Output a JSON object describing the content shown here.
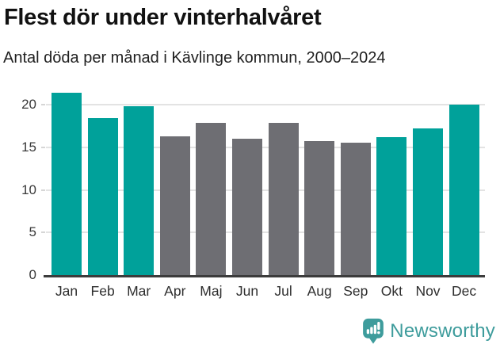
{
  "header": {
    "title": "Flest dör under vinterhalvåret",
    "subtitle": "Antal döda per månad i Kävlinge kommun, 2000–2024"
  },
  "chart_data": {
    "type": "bar",
    "title": "Flest dör under vinterhalvåret",
    "subtitle": "Antal döda per månad i Kävlinge kommun, 2000–2024",
    "categories": [
      "Jan",
      "Feb",
      "Mar",
      "Apr",
      "Maj",
      "Jun",
      "Jul",
      "Aug",
      "Sep",
      "Okt",
      "Nov",
      "Dec"
    ],
    "values": [
      21.4,
      18.4,
      19.8,
      16.3,
      17.9,
      16.0,
      17.9,
      15.7,
      15.5,
      16.2,
      17.2,
      20.0
    ],
    "bar_colors": [
      "teal",
      "teal",
      "teal",
      "gray",
      "gray",
      "gray",
      "gray",
      "gray",
      "gray",
      "teal",
      "teal",
      "teal"
    ],
    "colors": {
      "teal": "#00A19A",
      "gray": "#6E6E73",
      "grid": "#E3E3E3",
      "axis": "#3C3C3C",
      "tick_text": "#3A3A3A"
    },
    "xlabel": "",
    "ylabel": "",
    "yticks": [
      0,
      5,
      10,
      15,
      20
    ],
    "ylim": [
      0,
      22.5
    ],
    "grid": true,
    "legend": "none"
  },
  "footer": {
    "brand": "Newsworthy",
    "brand_color": "#3E9C9C",
    "logo_icon": "bar-chart-speech-bubble-icon"
  }
}
